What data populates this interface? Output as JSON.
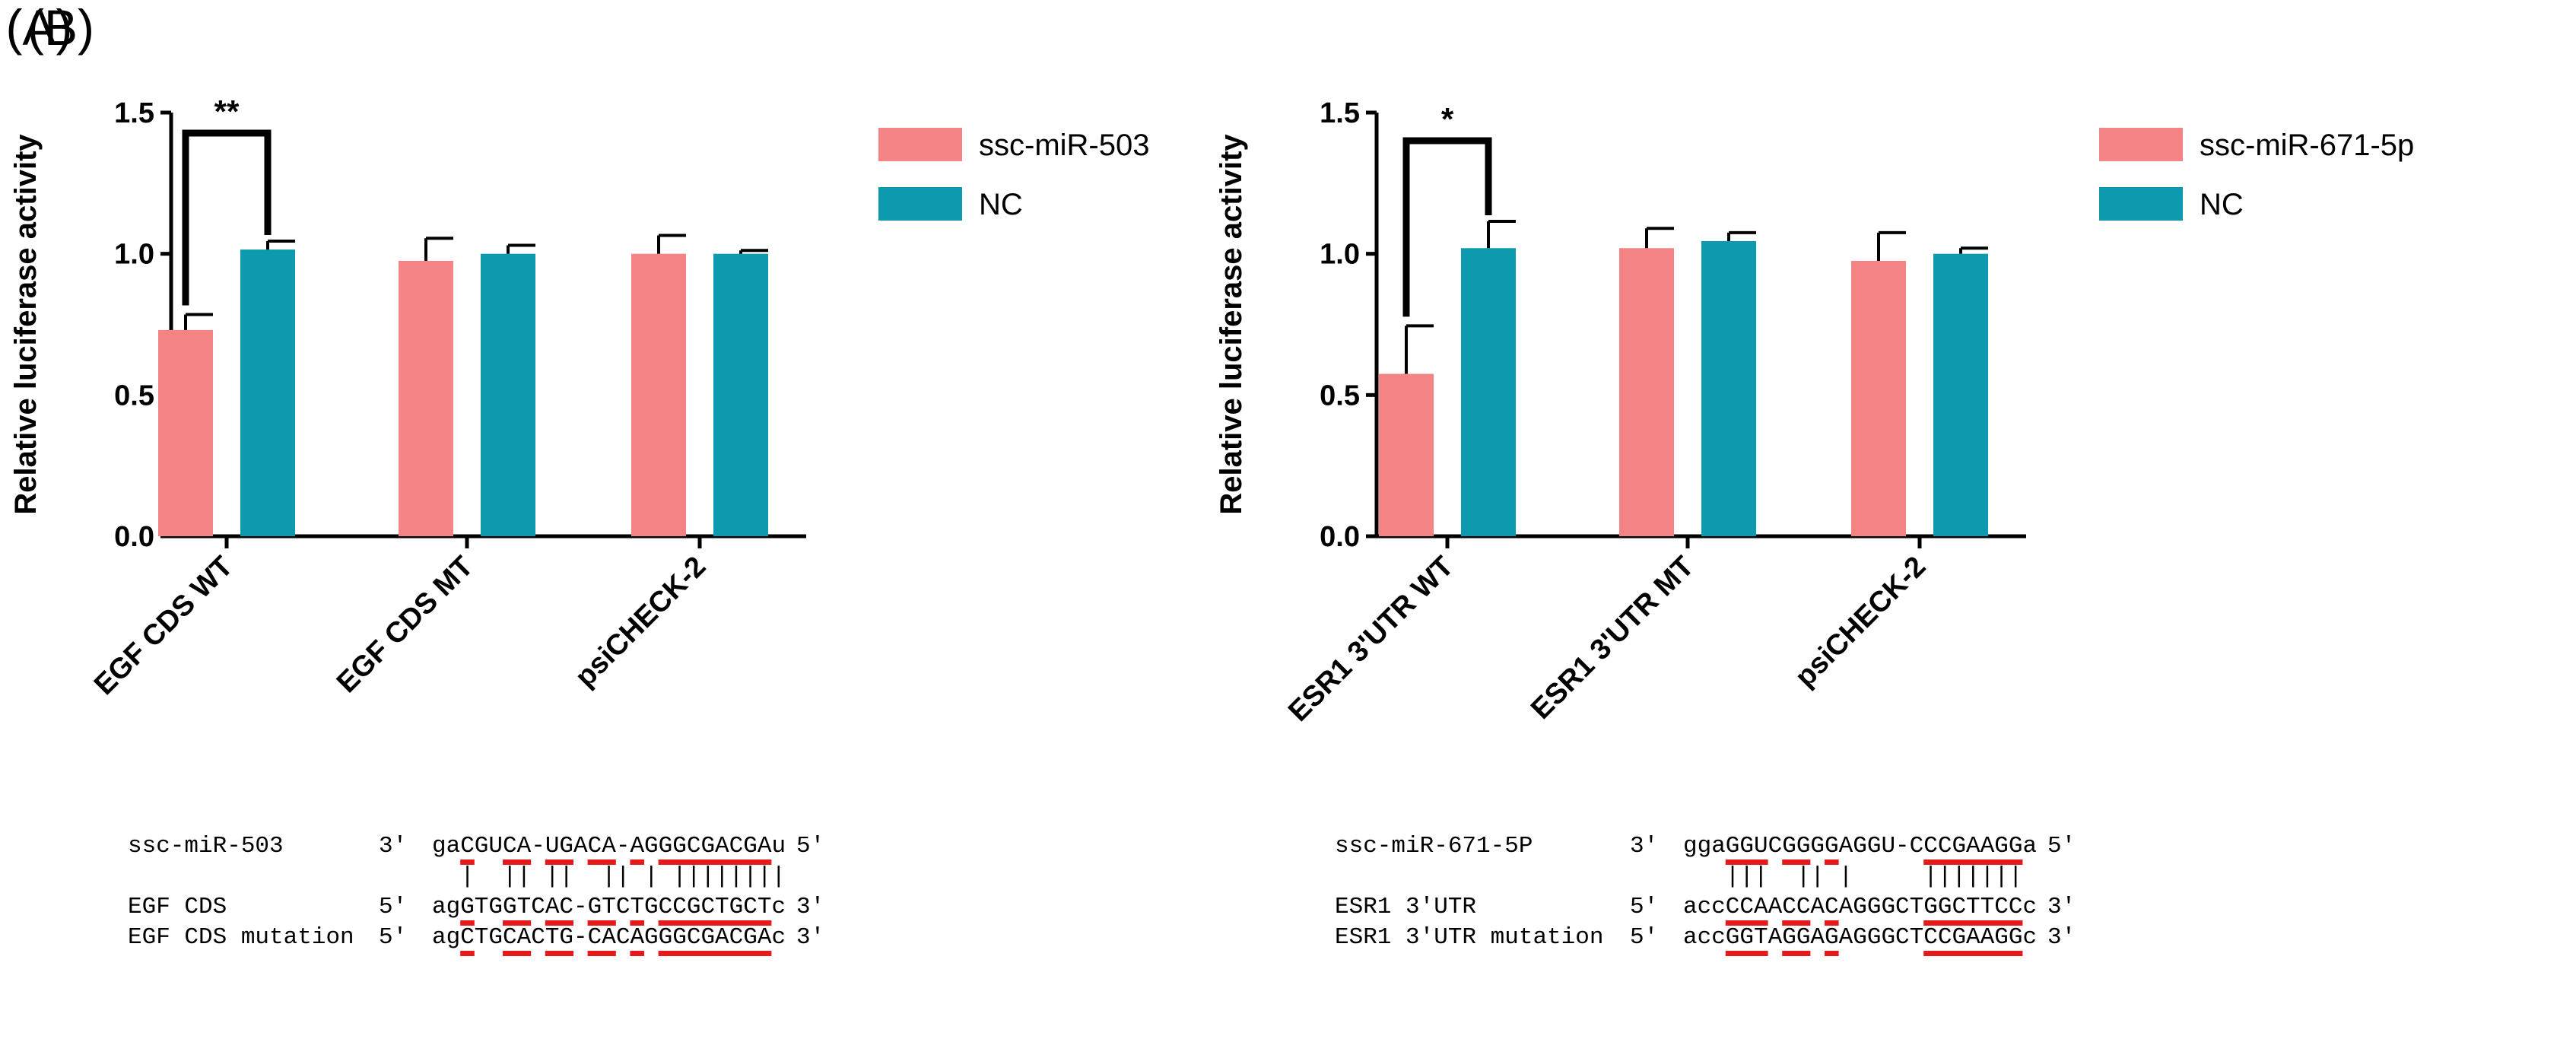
{
  "panels": [
    {
      "label": "(A)",
      "chart_data": {
        "type": "bar",
        "title": "",
        "xlabel": "",
        "ylabel": "Relative luciferase activity",
        "ylim": [
          0,
          1.5
        ],
        "yticks": [
          "0.0",
          "0.5",
          "1.0",
          "1.5"
        ],
        "categories": [
          "EGF CDS WT",
          "EGF CDS MT",
          "psiCHECK-2"
        ],
        "series": [
          {
            "name": "ssc-miR-503",
            "color": "#f48385",
            "values": [
              0.73,
              0.975,
              1.0
            ],
            "errors": [
              0.055,
              0.08,
              0.065
            ]
          },
          {
            "name": "NC",
            "color": "#0d9aae",
            "values": [
              1.015,
              1.0,
              1.0
            ],
            "errors": [
              0.03,
              0.03,
              0.012
            ]
          }
        ],
        "legend_position": "top-right",
        "significance": [
          {
            "category": "EGF CDS WT",
            "label": "**"
          }
        ]
      },
      "alignment": {
        "rows": [
          {
            "name": "ssc-miR-503",
            "dir5": "3'",
            "seq": "gaCGUCA-UGACA-AGGGCGACGAu",
            "dir3": "5'"
          },
          {
            "name": "",
            "dir5": "",
            "seq": "  |  || ||  || | ||||||||",
            "dir3": ""
          },
          {
            "name": "EGF CDS",
            "dir5": "5'",
            "seq": "agGTGGTCAC-GTCTGCCGCTGCTc",
            "dir3": "3'"
          },
          {
            "name": "EGF CDS mutation",
            "dir5": "5'",
            "seq": "agCTGCACTG-CACAGGGCGACGAc",
            "dir3": "3'"
          }
        ]
      }
    },
    {
      "label": "(B)",
      "chart_data": {
        "type": "bar",
        "title": "",
        "xlabel": "",
        "ylabel": "Relative luciferase activity",
        "ylim": [
          0,
          1.5
        ],
        "yticks": [
          "0.0",
          "0.5",
          "1.0",
          "1.5"
        ],
        "categories": [
          "ESR1 3'UTR WT",
          "ESR1 3'UTR MT",
          "psiCHECK-2"
        ],
        "series": [
          {
            "name": "ssc-miR-671-5p",
            "color": "#f48385",
            "values": [
              0.575,
              1.02,
              0.975
            ],
            "errors": [
              0.17,
              0.07,
              0.1
            ]
          },
          {
            "name": "NC",
            "color": "#0d9aae",
            "values": [
              1.02,
              1.045,
              1.0
            ],
            "errors": [
              0.095,
              0.03,
              0.02
            ]
          }
        ],
        "legend_position": "top-right",
        "significance": [
          {
            "category": "ESR1 3'UTR WT",
            "label": "*"
          }
        ]
      },
      "alignment": {
        "rows": [
          {
            "name": "ssc-miR-671-5P",
            "dir5": "3'",
            "seq": "ggaGGUCGGGGAGGU-CCCGAAGGa",
            "dir3": "5'"
          },
          {
            "name": "",
            "dir5": "",
            "seq": "   |||  || |     |||||||",
            "dir3": ""
          },
          {
            "name": "ESR1 3'UTR",
            "dir5": "5'",
            "seq": "accCCAACCACAGGGCTGGCTTCCc",
            "dir3": "3'"
          },
          {
            "name": "ESR1 3'UTR mutation",
            "dir5": "5'",
            "seq": "accGGTAGGAGAGGGCTCCGAAGGc",
            "dir3": "3'"
          }
        ]
      }
    }
  ]
}
